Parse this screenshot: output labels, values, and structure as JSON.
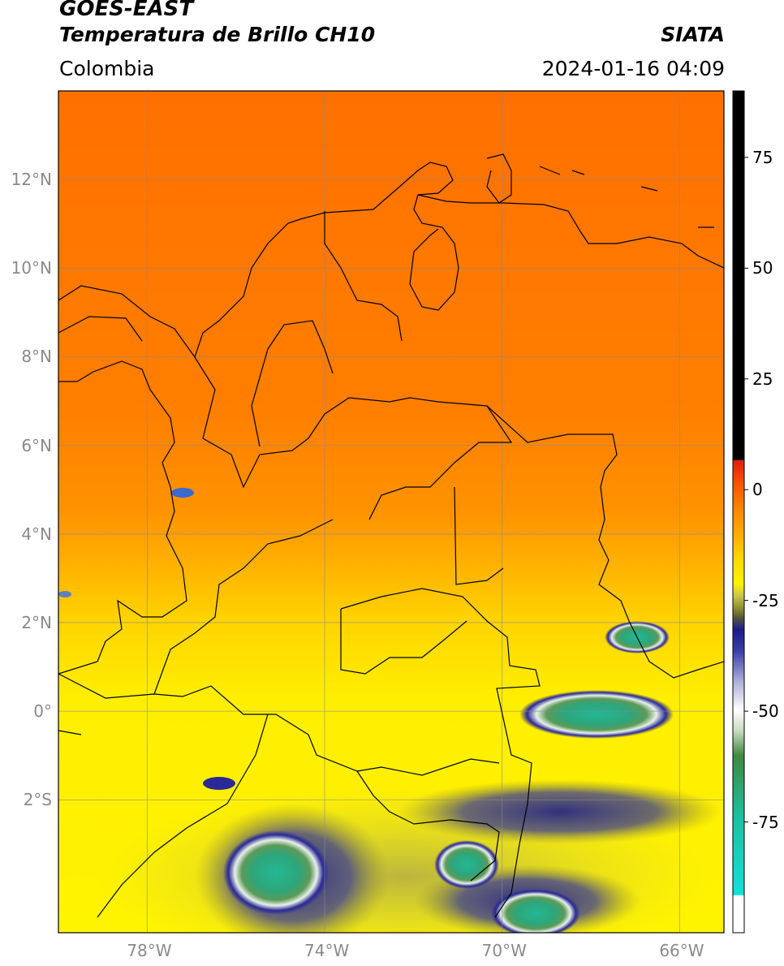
{
  "header": {
    "satellite": "GOES-EAST",
    "product": "Temperatura de Brillo CH10",
    "organization": "SIATA",
    "region": "Colombia",
    "timestamp": "2024-01-16 04:09"
  },
  "map": {
    "lon_range": [
      -80,
      -65
    ],
    "lat_range": [
      -5,
      14
    ],
    "lat_labels": [
      "12°N",
      "10°N",
      "8°N",
      "6°N",
      "4°N",
      "2°N",
      "0°",
      "2°S"
    ],
    "lon_labels": [
      "78°W",
      "74°W",
      "70°W",
      "66°W"
    ],
    "grid": true
  },
  "colorbar": {
    "range": [
      -100,
      90
    ],
    "tick_labels": [
      "75",
      "50",
      "25",
      "0",
      "-25",
      "-50",
      "-75"
    ],
    "colors": {
      "black": "#000000",
      "red": "#e21d10",
      "orange": "#ff8a00",
      "yellow": "#fff200",
      "olive": "#8e8d2e",
      "navy": "#1b1c8a",
      "white": "#ffffff",
      "green": "#3d8a3d",
      "teal": "#1dbf9e",
      "cyan": "#14e0dc"
    }
  }
}
